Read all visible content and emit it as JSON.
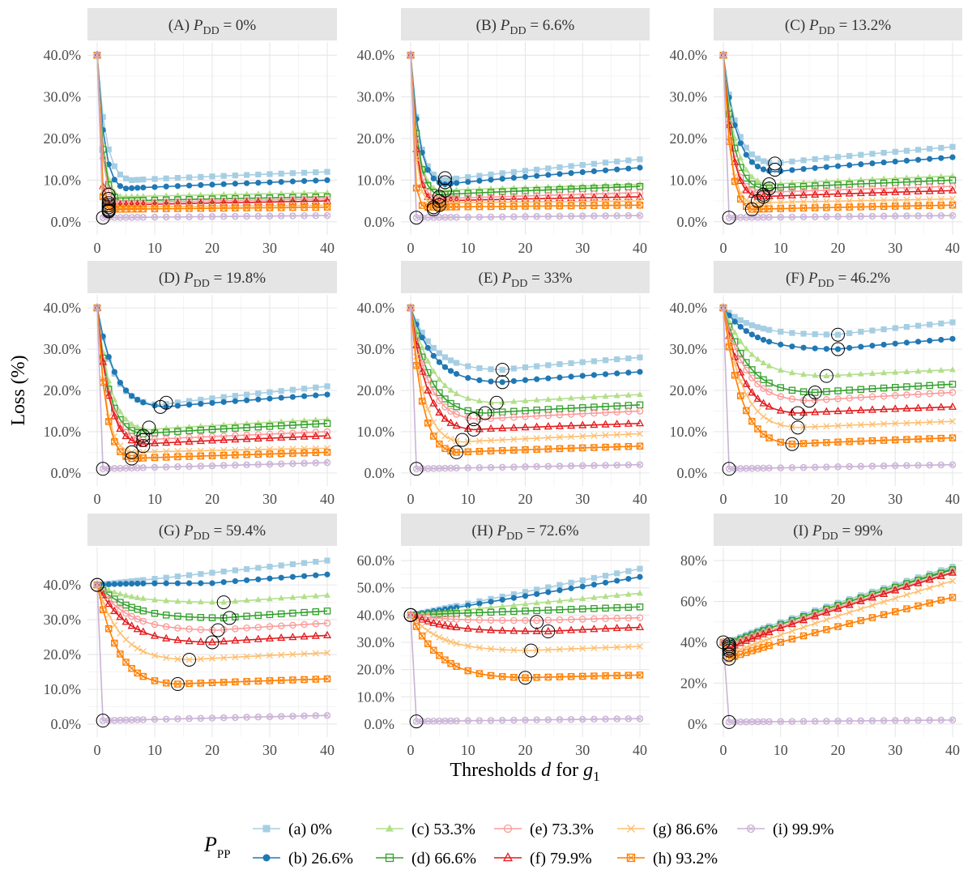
{
  "figure": {
    "xlabel_main": "Thresholds",
    "xlabel_var": "d",
    "xlabel_for": "for",
    "xlabel_g": "g",
    "xlabel_sub": "1",
    "ylabel": "Loss (%)",
    "legend_title_main": "P",
    "legend_title_sub": "PP"
  },
  "legend": [
    {
      "label": "(a) 0%",
      "color": "#a6cee3",
      "marker": "square-filled"
    },
    {
      "label": "(b) 26.6%",
      "color": "#1f78b4",
      "marker": "circle-filled"
    },
    {
      "label": "(c) 53.3%",
      "color": "#b2df8a",
      "marker": "triangle-filled"
    },
    {
      "label": "(d) 66.6%",
      "color": "#33a02c",
      "marker": "square-open"
    },
    {
      "label": "(e) 73.3%",
      "color": "#fb9a99",
      "marker": "circle-open"
    },
    {
      "label": "(f) 79.9%",
      "color": "#e31a1c",
      "marker": "triangle-open"
    },
    {
      "label": "(g) 86.6%",
      "color": "#fdbf6f",
      "marker": "cross"
    },
    {
      "label": "(h) 93.2%",
      "color": "#ff7f00",
      "marker": "square-cross"
    },
    {
      "label": "(i) 99.9%",
      "color": "#cab2d6",
      "marker": "circle-cross"
    }
  ],
  "chart_data": [
    {
      "type": "line",
      "title": "(A) P_DD = 0%",
      "strip_prefix": "(A)",
      "strip_var": "P",
      "strip_sub": "DD",
      "strip_value": "= 0%",
      "xlim": [
        0,
        40
      ],
      "ylim": [
        0,
        40
      ],
      "yticks": [
        0,
        10,
        20,
        30,
        40
      ],
      "ytick_labels": [
        "0.0%",
        "10.0%",
        "20.0%",
        "30.0%",
        "40.0%"
      ],
      "xticks": [
        0,
        10,
        20,
        30,
        40
      ],
      "xtick_labels": [
        "0",
        "10",
        "20",
        "30",
        "40"
      ],
      "series_params": [
        [
          6,
          10,
          12,
          false
        ],
        [
          5,
          8,
          10,
          false
        ],
        [
          4.2,
          6,
          7,
          false
        ],
        [
          4,
          5,
          6,
          false
        ],
        [
          3.5,
          4.5,
          5.5,
          false
        ],
        [
          3,
          4,
          5,
          false
        ],
        [
          2.8,
          3.5,
          4,
          false
        ],
        [
          2.5,
          3,
          3.5,
          false
        ],
        [
          1,
          1.5,
          2,
          true
        ]
      ],
      "optima": [
        [
          2,
          6.5
        ],
        [
          2,
          5.5
        ],
        [
          2,
          4.5
        ],
        [
          2,
          4
        ],
        [
          2,
          3.5
        ],
        [
          2,
          3
        ],
        [
          2,
          2.7
        ],
        [
          2,
          2.5
        ],
        [
          1,
          1
        ]
      ]
    },
    {
      "type": "line",
      "title": "(B) P_DD = 6.6%",
      "strip_prefix": "(B)",
      "strip_var": "P",
      "strip_sub": "DD",
      "strip_value": "= 6.6%",
      "xlim": [
        0,
        40
      ],
      "ylim": [
        0,
        40
      ],
      "yticks": [
        0,
        10,
        20,
        30,
        40
      ],
      "ytick_labels": [
        "0.0%",
        "10.0%",
        "20.0%",
        "30.0%",
        "40.0%"
      ],
      "xticks": [
        0,
        10,
        20,
        30,
        40
      ],
      "xtick_labels": [
        "0",
        "10",
        "20",
        "30",
        "40"
      ],
      "series_params": [
        [
          6,
          10,
          15,
          false
        ],
        [
          6,
          9,
          13,
          false
        ],
        [
          5,
          7.5,
          9,
          false
        ],
        [
          5,
          6.5,
          8.5,
          false
        ],
        [
          4.5,
          5.5,
          7,
          false
        ],
        [
          4,
          5,
          6,
          false
        ],
        [
          3.5,
          4.5,
          5,
          false
        ],
        [
          3,
          3.5,
          4,
          false
        ],
        [
          1,
          1.5,
          2,
          true
        ]
      ],
      "optima": [
        [
          6,
          10.5
        ],
        [
          6,
          9.5
        ],
        [
          6,
          7.5
        ],
        [
          5,
          6
        ],
        [
          5,
          5
        ],
        [
          5,
          4
        ],
        [
          4,
          3.5
        ],
        [
          4,
          3
        ],
        [
          1,
          1
        ]
      ]
    },
    {
      "type": "line",
      "title": "(C) P_DD = 13.2%",
      "strip_prefix": "(C)",
      "strip_var": "P",
      "strip_sub": "DD",
      "strip_value": "= 13.2%",
      "xlim": [
        0,
        40
      ],
      "ylim": [
        0,
        40
      ],
      "yticks": [
        0,
        10,
        20,
        30,
        40
      ],
      "ytick_labels": [
        "0.0%",
        "10.0%",
        "20.0%",
        "30.0%",
        "40.0%"
      ],
      "xticks": [
        0,
        10,
        20,
        30,
        40
      ],
      "xtick_labels": [
        "0",
        "10",
        "20",
        "30",
        "40"
      ],
      "series_params": [
        [
          9,
          14,
          18,
          false
        ],
        [
          9,
          12,
          15.5,
          false
        ],
        [
          8,
          9,
          11,
          false
        ],
        [
          7,
          8,
          10,
          false
        ],
        [
          6,
          7,
          8.5,
          false
        ],
        [
          6,
          6,
          7.5,
          false
        ],
        [
          5,
          4.5,
          5.5,
          false
        ],
        [
          5,
          3,
          4,
          false
        ],
        [
          1,
          1.5,
          2,
          true
        ]
      ],
      "optima": [
        [
          9,
          14
        ],
        [
          9,
          12.5
        ],
        [
          8,
          9
        ],
        [
          8,
          8
        ],
        [
          7,
          6.5
        ],
        [
          7,
          6
        ],
        [
          6,
          5
        ],
        [
          5,
          3
        ],
        [
          1,
          1
        ]
      ]
    },
    {
      "type": "line",
      "title": "(D) P_DD = 19.8%",
      "strip_prefix": "(D)",
      "strip_var": "P",
      "strip_sub": "DD",
      "strip_value": "= 19.8%",
      "xlim": [
        0,
        40
      ],
      "ylim": [
        0,
        40
      ],
      "yticks": [
        0,
        10,
        20,
        30,
        40
      ],
      "ytick_labels": [
        "0.0%",
        "10.0%",
        "20.0%",
        "30.0%",
        "40.0%"
      ],
      "xticks": [
        0,
        10,
        20,
        30,
        40
      ],
      "xtick_labels": [
        "0",
        "10",
        "20",
        "30",
        "40"
      ],
      "series_params": [
        [
          11,
          16.5,
          21,
          false
        ],
        [
          12,
          16,
          19,
          false
        ],
        [
          9,
          10.5,
          13,
          false
        ],
        [
          8,
          9.5,
          12,
          false
        ],
        [
          8,
          8,
          10,
          false
        ],
        [
          8,
          7,
          9,
          false
        ],
        [
          6,
          5,
          6,
          false
        ],
        [
          6,
          3.5,
          5,
          false
        ],
        [
          1,
          1,
          2.5,
          true
        ]
      ],
      "optima": [
        [
          12,
          17
        ],
        [
          11,
          16
        ],
        [
          9,
          11
        ],
        [
          8,
          9
        ],
        [
          8,
          8
        ],
        [
          8,
          6.5
        ],
        [
          6,
          5
        ],
        [
          6,
          3.5
        ],
        [
          1,
          1
        ]
      ]
    },
    {
      "type": "line",
      "title": "(E) P_DD = 33%",
      "strip_prefix": "(E)",
      "strip_var": "P",
      "strip_sub": "DD",
      "strip_value": "= 33%",
      "xlim": [
        0,
        40
      ],
      "ylim": [
        0,
        40
      ],
      "yticks": [
        0,
        10,
        20,
        30,
        40
      ],
      "ytick_labels": [
        "0.0%",
        "10.0%",
        "20.0%",
        "30.0%",
        "40.0%"
      ],
      "xticks": [
        0,
        10,
        20,
        30,
        40
      ],
      "xtick_labels": [
        "0",
        "10",
        "20",
        "30",
        "40"
      ],
      "series_params": [
        [
          16,
          25,
          28,
          false
        ],
        [
          16,
          22,
          24.5,
          false
        ],
        [
          15,
          17,
          19,
          false
        ],
        [
          13,
          14.5,
          16.5,
          false
        ],
        [
          12,
          13,
          15,
          false
        ],
        [
          11,
          10.5,
          12,
          false
        ],
        [
          9,
          7.5,
          9.5,
          false
        ],
        [
          8,
          5,
          6.5,
          false
        ],
        [
          1,
          1,
          2,
          true
        ]
      ],
      "optima": [
        [
          16,
          25
        ],
        [
          16,
          22
        ],
        [
          15,
          17
        ],
        [
          13,
          14.5
        ],
        [
          11,
          13
        ],
        [
          11,
          10.5
        ],
        [
          9,
          8
        ],
        [
          8,
          5
        ],
        [
          1,
          1
        ]
      ]
    },
    {
      "type": "line",
      "title": "(F) P_DD = 46.2%",
      "strip_prefix": "(F)",
      "strip_var": "P",
      "strip_sub": "DD",
      "strip_value": "= 46.2%",
      "xlim": [
        0,
        40
      ],
      "ylim": [
        0,
        40
      ],
      "yticks": [
        0,
        10,
        20,
        30,
        40
      ],
      "ytick_labels": [
        "0.0%",
        "10.0%",
        "20.0%",
        "30.0%",
        "40.0%"
      ],
      "xticks": [
        0,
        10,
        20,
        30,
        40
      ],
      "xtick_labels": [
        "0",
        "10",
        "20",
        "30",
        "40"
      ],
      "series_params": [
        [
          20,
          33.5,
          36.5,
          false
        ],
        [
          20,
          30,
          32.5,
          false
        ],
        [
          18,
          23.5,
          25,
          false
        ],
        [
          16,
          19.5,
          21.5,
          false
        ],
        [
          15,
          17.5,
          19.5,
          false
        ],
        [
          13,
          14.5,
          16,
          false
        ],
        [
          13,
          11,
          12.5,
          false
        ],
        [
          12,
          7,
          8.5,
          false
        ],
        [
          1,
          1,
          2,
          true
        ]
      ],
      "optima": [
        [
          20,
          33.5
        ],
        [
          20,
          30
        ],
        [
          18,
          23.5
        ],
        [
          16,
          19.5
        ],
        [
          15,
          17.5
        ],
        [
          13,
          14.5
        ],
        [
          13,
          11
        ],
        [
          12,
          7
        ],
        [
          1,
          1
        ]
      ]
    },
    {
      "type": "line",
      "title": "(G) P_DD = 59.4%",
      "strip_prefix": "(G)",
      "strip_var": "P",
      "strip_sub": "DD",
      "strip_value": "= 59.4%",
      "xlim": [
        0,
        40
      ],
      "ylim": [
        0,
        47
      ],
      "yticks": [
        0,
        10,
        20,
        30,
        40
      ],
      "ytick_labels": [
        "0.0%",
        "10.0%",
        "20.0%",
        "30.0%",
        "40.0%"
      ],
      "xticks": [
        0,
        10,
        20,
        30,
        40
      ],
      "xtick_labels": [
        "0",
        "10",
        "20",
        "30",
        "40"
      ],
      "series_params": [
        [
          0,
          40,
          47,
          false
        ],
        [
          20,
          40.5,
          43,
          false
        ],
        [
          22,
          35,
          37,
          false
        ],
        [
          22,
          30.5,
          32.5,
          false
        ],
        [
          21,
          27,
          29,
          false
        ],
        [
          20,
          23.5,
          25.5,
          false
        ],
        [
          16,
          18.5,
          20.5,
          false
        ],
        [
          14,
          11.5,
          13,
          false
        ],
        [
          1,
          1,
          2.5,
          true
        ]
      ],
      "optima": [
        [
          0,
          40
        ],
        [
          0,
          40
        ],
        [
          22,
          35
        ],
        [
          23,
          30.5
        ],
        [
          21,
          27
        ],
        [
          20,
          23.5
        ],
        [
          16,
          18.5
        ],
        [
          14,
          11.5
        ],
        [
          1,
          1
        ]
      ]
    },
    {
      "type": "line",
      "title": "(H) P_DD = 72.6%",
      "strip_prefix": "(H)",
      "strip_var": "P",
      "strip_sub": "DD",
      "strip_value": "= 72.6%",
      "xlim": [
        0,
        40
      ],
      "ylim": [
        0,
        60
      ],
      "yticks": [
        0,
        10,
        20,
        30,
        40,
        50,
        60
      ],
      "ytick_labels": [
        "0.0%",
        "10.0%",
        "20.0%",
        "30.0%",
        "40.0%",
        "50.0%",
        "60.0%"
      ],
      "xticks": [
        0,
        10,
        20,
        30,
        40
      ],
      "xtick_labels": [
        "0",
        "10",
        "20",
        "30",
        "40"
      ],
      "series_params": [
        [
          0,
          40,
          57,
          false
        ],
        [
          0,
          40,
          54,
          false
        ],
        [
          0,
          40,
          48,
          false
        ],
        [
          0,
          40,
          43,
          false
        ],
        [
          22,
          38,
          39,
          false
        ],
        [
          24,
          34,
          35.5,
          false
        ],
        [
          21,
          27,
          28.5,
          false
        ],
        [
          20,
          17,
          18,
          false
        ],
        [
          1,
          1,
          2,
          true
        ]
      ],
      "optima": [
        [
          0,
          40
        ],
        [
          0,
          40
        ],
        [
          0,
          40
        ],
        [
          0,
          40
        ],
        [
          22,
          37.5
        ],
        [
          24,
          34
        ],
        [
          21,
          27
        ],
        [
          20,
          17
        ],
        [
          1,
          1
        ]
      ]
    },
    {
      "type": "line",
      "title": "(I) P_DD = 99%",
      "strip_prefix": "(I)",
      "strip_var": "P",
      "strip_sub": "DD",
      "strip_value": "= 99%",
      "xlim": [
        0,
        40
      ],
      "ylim": [
        0,
        80
      ],
      "yticks": [
        0,
        20,
        40,
        60,
        80
      ],
      "ytick_labels": [
        "0%",
        "20%",
        "40%",
        "60%",
        "80%"
      ],
      "xticks": [
        0,
        10,
        20,
        30,
        40
      ],
      "xtick_labels": [
        "0",
        "10",
        "20",
        "30",
        "40"
      ],
      "series_params": [
        [
          1,
          40,
          77,
          false
        ],
        [
          1,
          39,
          76,
          false
        ],
        [
          1,
          39,
          76.5,
          false
        ],
        [
          1,
          39,
          75.5,
          false
        ],
        [
          1,
          38,
          74.5,
          false
        ],
        [
          1,
          37,
          74,
          false
        ],
        [
          1,
          34,
          70,
          false
        ],
        [
          1,
          32,
          62,
          false
        ],
        [
          1,
          1,
          2,
          true
        ]
      ],
      "optima": [
        [
          0,
          40
        ],
        [
          1,
          39
        ],
        [
          1,
          39
        ],
        [
          1,
          38
        ],
        [
          1,
          37
        ],
        [
          1,
          36
        ],
        [
          1,
          34
        ],
        [
          1,
          32
        ],
        [
          1,
          1
        ]
      ]
    }
  ]
}
